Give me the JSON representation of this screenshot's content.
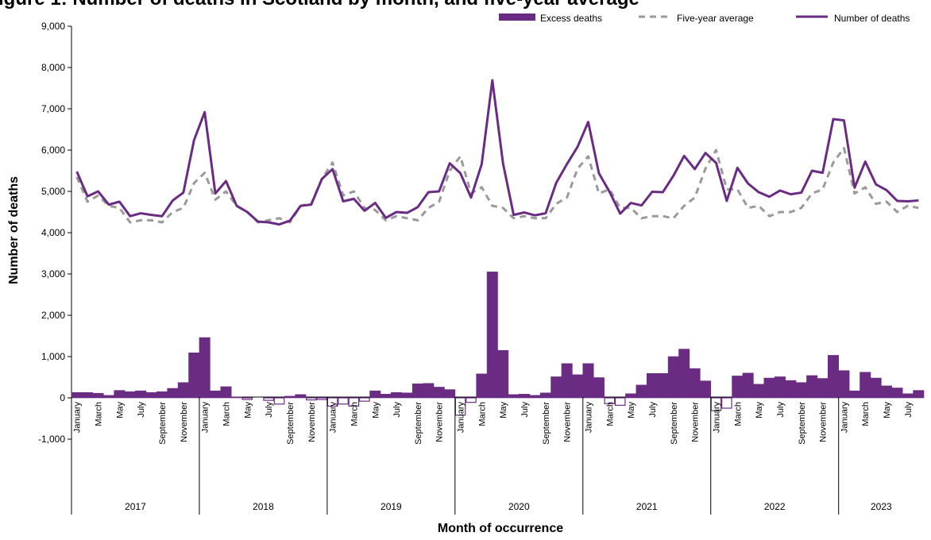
{
  "chart_data": {
    "type": "bar",
    "title": "igure 1: Number of deaths in Scotland by month, and five-year average",
    "xlabel": "Month of occurrence",
    "ylabel": "Number of deaths",
    "ylim": [
      -1000,
      9000
    ],
    "yticks": [
      "-1,000",
      "0",
      "1,000",
      "2,000",
      "3,000",
      "4,000",
      "5,000",
      "6,000",
      "7,000",
      "8,000",
      "9,000"
    ],
    "grid": false,
    "legend_position": "top-right",
    "month_tick_labels": [
      "January",
      "March",
      "May",
      "July",
      "September",
      "November"
    ],
    "years": [
      "2017",
      "2018",
      "2019",
      "2020",
      "2021",
      "2022",
      "2023"
    ],
    "months_in_year": [
      12,
      12,
      12,
      12,
      12,
      12,
      8
    ],
    "colors": {
      "purple": "#6a2c82",
      "grey": "#9a9a9a"
    },
    "series": [
      {
        "name": "Excess deaths",
        "type": "bar",
        "values": [
          130,
          130,
          110,
          60,
          180,
          150,
          170,
          130,
          150,
          230,
          370,
          1090,
          1460,
          170,
          270,
          20,
          -40,
          0,
          -60,
          -150,
          40,
          80,
          -50,
          -40,
          -200,
          -150,
          -200,
          -80,
          170,
          90,
          130,
          120,
          340,
          350,
          260,
          200,
          -420,
          -110,
          580,
          3050,
          1150,
          80,
          90,
          60,
          120,
          510,
          830,
          560,
          830,
          490,
          -140,
          -180,
          100,
          310,
          590,
          590,
          1000,
          1180,
          710,
          410,
          -310,
          -250,
          530,
          600,
          330,
          480,
          510,
          420,
          370,
          540,
          470,
          1030,
          660,
          170,
          620,
          480,
          290,
          240,
          100,
          180
        ]
      },
      {
        "name": "Five-year average",
        "type": "line",
        "values": [
          5350,
          4750,
          4900,
          4650,
          4600,
          4250,
          4300,
          4300,
          4250,
          4500,
          4600,
          5200,
          5450,
          4800,
          5000,
          4650,
          4500,
          4250,
          4300,
          4350,
          4250,
          4650,
          4700,
          5300,
          5700,
          4900,
          5000,
          4600,
          4550,
          4300,
          4400,
          4350,
          4300,
          4600,
          4750,
          5500,
          5850,
          4950,
          5100,
          4650,
          4600,
          4350,
          4400,
          4350,
          4350,
          4700,
          4850,
          5550,
          5850,
          4950,
          5050,
          4600,
          4600,
          4350,
          4400,
          4400,
          4350,
          4650,
          4850,
          5550,
          6000,
          5050,
          5050,
          4600,
          4650,
          4400,
          4500,
          4500,
          4600,
          4950,
          5050,
          5700,
          6050,
          4950,
          5100,
          4700,
          4750,
          4500,
          4650,
          4600
        ]
      },
      {
        "name": "Number of deaths",
        "type": "line",
        "values": [
          5480,
          4880,
          5000,
          4680,
          4750,
          4400,
          4470,
          4430,
          4400,
          4780,
          4970,
          6240,
          6920,
          4950,
          5250,
          4650,
          4500,
          4270,
          4250,
          4200,
          4290,
          4650,
          4680,
          5300,
          5540,
          4760,
          4820,
          4530,
          4720,
          4360,
          4500,
          4480,
          4620,
          4980,
          5000,
          5680,
          5440,
          4850,
          5660,
          7690,
          5680,
          4430,
          4490,
          4420,
          4470,
          5210,
          5660,
          6080,
          6680,
          5440,
          4990,
          4460,
          4720,
          4660,
          4990,
          4980,
          5380,
          5860,
          5540,
          5930,
          5690,
          4770,
          5570,
          5190,
          4980,
          4870,
          5020,
          4930,
          4970,
          5500,
          5450,
          6750,
          6720,
          5090,
          5720,
          5170,
          5030,
          4770,
          4760,
          4780
        ]
      }
    ]
  }
}
